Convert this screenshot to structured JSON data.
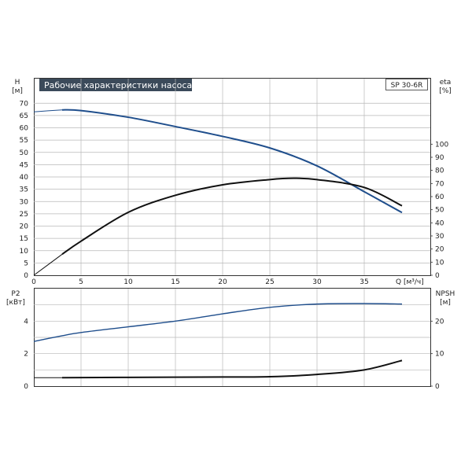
{
  "chart_data": {
    "type": "line",
    "title": "Рабочие характеристики насоса",
    "model": "SP 30-6R",
    "x_axis": {
      "label": "Q [м³/ч]",
      "range": [
        0,
        42
      ],
      "ticks": [
        "0",
        "5",
        "10",
        "15",
        "20",
        "25",
        "30",
        "35"
      ]
    },
    "top_panel": {
      "y_left": {
        "label": "H",
        "unit": "[м]",
        "range": [
          0,
          80
        ],
        "ticks": [
          "0",
          "5",
          "10",
          "15",
          "20",
          "25",
          "30",
          "35",
          "40",
          "45",
          "50",
          "55",
          "60",
          "65",
          "70"
        ]
      },
      "y_right": {
        "label": "eta",
        "unit": "[%]",
        "range": [
          0,
          150
        ],
        "ticks": [
          "0",
          "10",
          "20",
          "30",
          "40",
          "50",
          "60",
          "70",
          "80",
          "90",
          "100"
        ]
      },
      "series": [
        {
          "axis": "left",
          "color": "#1f4e8c",
          "thin_segment_until_x": 3,
          "x": [
            0,
            3,
            5,
            10,
            15,
            20,
            25,
            30,
            35,
            39
          ],
          "y": [
            66.5,
            67.3,
            67.0,
            64.3,
            60.5,
            56.5,
            51.8,
            44.5,
            34.0,
            25.5
          ]
        },
        {
          "axis": "right",
          "color": "#111111",
          "thin_segment_until_x": 3,
          "x": [
            0,
            3,
            5,
            10,
            15,
            20,
            25,
            27.5,
            30,
            35,
            39
          ],
          "y": [
            0,
            16,
            26,
            48,
            61,
            69,
            73,
            74,
            73,
            67,
            53
          ]
        }
      ]
    },
    "bottom_panel": {
      "y_left": {
        "label": "P2",
        "unit": "[кВт]",
        "range": [
          0,
          6
        ],
        "ticks": [
          "0",
          "2",
          "4"
        ]
      },
      "y_right": {
        "label": "NPSH",
        "unit": "[м]",
        "range": [
          0,
          30
        ],
        "ticks": [
          "0",
          "10",
          "20"
        ]
      },
      "series": [
        {
          "axis": "left",
          "color": "#1f4e8c",
          "x": [
            0,
            3,
            5,
            10,
            15,
            20,
            25,
            30,
            35,
            39
          ],
          "y": [
            2.75,
            3.1,
            3.3,
            3.65,
            4.0,
            4.45,
            4.85,
            5.05,
            5.08,
            5.05
          ]
        },
        {
          "axis": "right",
          "color": "#111111",
          "thin_segment_until_x": 3,
          "x": [
            0,
            3,
            10,
            20,
            25,
            30,
            35,
            39
          ],
          "y": [
            2.6,
            2.6,
            2.7,
            2.8,
            2.9,
            3.6,
            5.0,
            7.9
          ]
        }
      ]
    }
  }
}
